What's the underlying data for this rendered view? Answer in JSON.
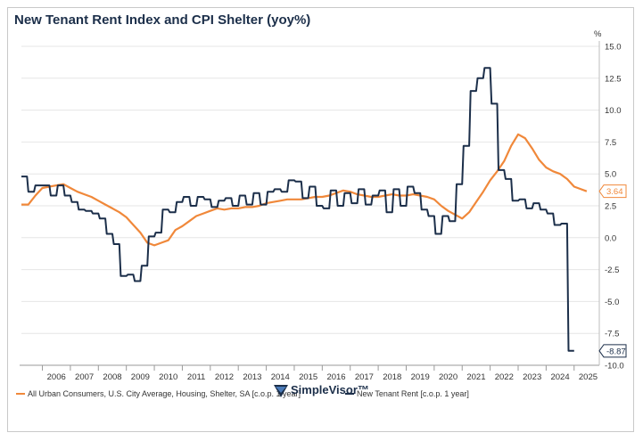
{
  "chart_data": {
    "type": "line",
    "title": "New Tenant Rent Index and CPI Shelter (yoy%)",
    "y_unit": "%",
    "ylim": [
      -10,
      15
    ],
    "y_ticks": [
      "15.0",
      "12.5",
      "10.0",
      "7.5",
      "5.0",
      "2.5",
      "0.0",
      "-2.5",
      "-5.0",
      "-7.5",
      "-10.0"
    ],
    "x_ticks": [
      "2006",
      "2007",
      "2008",
      "2009",
      "2010",
      "2011",
      "2012",
      "2013",
      "2014",
      "2015",
      "2016",
      "2017",
      "2018",
      "2019",
      "2020",
      "2021",
      "2022",
      "2023",
      "2024",
      "2025"
    ],
    "grid": true,
    "legend_position": "bottom-left",
    "series": [
      {
        "name": "All Urban Consumers, U.S. City Average, Housing, Shelter, SA [c.o.p. 1 year]",
        "color": "#f0883a",
        "end_label": "3.64",
        "points": [
          [
            2005.25,
            2.6
          ],
          [
            2005.5,
            2.6
          ],
          [
            2005.75,
            3.3
          ],
          [
            2006.0,
            3.9
          ],
          [
            2006.25,
            4.0
          ],
          [
            2006.5,
            4.1
          ],
          [
            2006.75,
            4.2
          ],
          [
            2007.0,
            3.9
          ],
          [
            2007.25,
            3.6
          ],
          [
            2007.5,
            3.4
          ],
          [
            2007.75,
            3.2
          ],
          [
            2008.0,
            2.9
          ],
          [
            2008.25,
            2.6
          ],
          [
            2008.5,
            2.3
          ],
          [
            2008.75,
            2.0
          ],
          [
            2009.0,
            1.6
          ],
          [
            2009.25,
            1.0
          ],
          [
            2009.5,
            0.4
          ],
          [
            2009.75,
            -0.4
          ],
          [
            2010.0,
            -0.6
          ],
          [
            2010.25,
            -0.4
          ],
          [
            2010.5,
            -0.2
          ],
          [
            2010.75,
            0.6
          ],
          [
            2011.0,
            0.9
          ],
          [
            2011.25,
            1.3
          ],
          [
            2011.5,
            1.7
          ],
          [
            2011.75,
            1.9
          ],
          [
            2012.0,
            2.1
          ],
          [
            2012.25,
            2.3
          ],
          [
            2012.5,
            2.2
          ],
          [
            2012.75,
            2.3
          ],
          [
            2013.0,
            2.3
          ],
          [
            2013.25,
            2.4
          ],
          [
            2013.5,
            2.4
          ],
          [
            2013.75,
            2.5
          ],
          [
            2014.0,
            2.7
          ],
          [
            2014.25,
            2.8
          ],
          [
            2014.5,
            2.9
          ],
          [
            2014.75,
            3.0
          ],
          [
            2015.0,
            3.0
          ],
          [
            2015.25,
            3.0
          ],
          [
            2015.5,
            3.1
          ],
          [
            2015.75,
            3.2
          ],
          [
            2016.0,
            3.2
          ],
          [
            2016.25,
            3.3
          ],
          [
            2016.5,
            3.5
          ],
          [
            2016.75,
            3.7
          ],
          [
            2017.0,
            3.6
          ],
          [
            2017.25,
            3.4
          ],
          [
            2017.5,
            3.3
          ],
          [
            2017.75,
            3.2
          ],
          [
            2018.0,
            3.2
          ],
          [
            2018.25,
            3.3
          ],
          [
            2018.5,
            3.4
          ],
          [
            2018.75,
            3.3
          ],
          [
            2019.0,
            3.3
          ],
          [
            2019.25,
            3.4
          ],
          [
            2019.5,
            3.3
          ],
          [
            2019.75,
            3.2
          ],
          [
            2020.0,
            3.0
          ],
          [
            2020.25,
            2.5
          ],
          [
            2020.5,
            2.1
          ],
          [
            2020.75,
            1.8
          ],
          [
            2021.0,
            1.5
          ],
          [
            2021.25,
            2.0
          ],
          [
            2021.5,
            2.8
          ],
          [
            2021.75,
            3.6
          ],
          [
            2022.0,
            4.5
          ],
          [
            2022.25,
            5.2
          ],
          [
            2022.5,
            6.0
          ],
          [
            2022.75,
            7.2
          ],
          [
            2023.0,
            8.1
          ],
          [
            2023.25,
            7.8
          ],
          [
            2023.5,
            7.0
          ],
          [
            2023.75,
            6.1
          ],
          [
            2024.0,
            5.5
          ],
          [
            2024.25,
            5.2
          ],
          [
            2024.5,
            5.0
          ],
          [
            2024.75,
            4.6
          ],
          [
            2025.0,
            4.0
          ],
          [
            2025.25,
            3.8
          ],
          [
            2025.45,
            3.64
          ]
        ]
      },
      {
        "name": "New Tenant Rent [c.o.p. 1 year]",
        "color": "#1c2f4a",
        "end_label": "-8.87",
        "points": [
          [
            2005.25,
            4.8
          ],
          [
            2005.45,
            4.8
          ],
          [
            2005.5,
            3.6
          ],
          [
            2005.7,
            3.6
          ],
          [
            2005.75,
            4.1
          ],
          [
            2006.0,
            4.1
          ],
          [
            2006.05,
            4.1
          ],
          [
            2006.25,
            4.1
          ],
          [
            2006.3,
            3.3
          ],
          [
            2006.5,
            3.3
          ],
          [
            2006.55,
            4.1
          ],
          [
            2006.75,
            4.1
          ],
          [
            2006.8,
            3.3
          ],
          [
            2007.0,
            3.3
          ],
          [
            2007.05,
            2.8
          ],
          [
            2007.25,
            2.8
          ],
          [
            2007.3,
            2.2
          ],
          [
            2007.5,
            2.2
          ],
          [
            2007.55,
            2.1
          ],
          [
            2007.75,
            2.1
          ],
          [
            2007.8,
            1.9
          ],
          [
            2008.0,
            1.9
          ],
          [
            2008.05,
            1.5
          ],
          [
            2008.25,
            1.5
          ],
          [
            2008.3,
            0.3
          ],
          [
            2008.5,
            0.3
          ],
          [
            2008.55,
            -0.5
          ],
          [
            2008.75,
            -0.5
          ],
          [
            2008.8,
            -3.0
          ],
          [
            2009.0,
            -3.0
          ],
          [
            2009.05,
            -2.9
          ],
          [
            2009.25,
            -2.9
          ],
          [
            2009.3,
            -3.4
          ],
          [
            2009.5,
            -3.4
          ],
          [
            2009.55,
            -2.2
          ],
          [
            2009.75,
            -2.2
          ],
          [
            2009.8,
            0.1
          ],
          [
            2010.0,
            0.1
          ],
          [
            2010.05,
            0.4
          ],
          [
            2010.25,
            0.4
          ],
          [
            2010.3,
            2.2
          ],
          [
            2010.5,
            2.2
          ],
          [
            2010.55,
            2.0
          ],
          [
            2010.75,
            2.0
          ],
          [
            2010.8,
            2.8
          ],
          [
            2011.0,
            2.8
          ],
          [
            2011.05,
            3.2
          ],
          [
            2011.25,
            3.2
          ],
          [
            2011.3,
            2.5
          ],
          [
            2011.5,
            2.5
          ],
          [
            2011.55,
            3.2
          ],
          [
            2011.75,
            3.2
          ],
          [
            2011.8,
            3.0
          ],
          [
            2012.0,
            3.0
          ],
          [
            2012.05,
            2.4
          ],
          [
            2012.25,
            2.4
          ],
          [
            2012.3,
            2.9
          ],
          [
            2012.5,
            2.9
          ],
          [
            2012.55,
            3.1
          ],
          [
            2012.75,
            3.1
          ],
          [
            2012.8,
            2.5
          ],
          [
            2013.0,
            2.5
          ],
          [
            2013.05,
            3.3
          ],
          [
            2013.25,
            3.3
          ],
          [
            2013.3,
            2.6
          ],
          [
            2013.5,
            2.6
          ],
          [
            2013.55,
            3.5
          ],
          [
            2013.75,
            3.5
          ],
          [
            2013.8,
            2.6
          ],
          [
            2014.0,
            2.6
          ],
          [
            2014.05,
            3.6
          ],
          [
            2014.25,
            3.6
          ],
          [
            2014.3,
            3.8
          ],
          [
            2014.5,
            3.8
          ],
          [
            2014.55,
            3.6
          ],
          [
            2014.75,
            3.6
          ],
          [
            2014.8,
            4.5
          ],
          [
            2015.0,
            4.5
          ],
          [
            2015.05,
            4.4
          ],
          [
            2015.25,
            4.4
          ],
          [
            2015.3,
            3.1
          ],
          [
            2015.5,
            3.1
          ],
          [
            2015.55,
            4.0
          ],
          [
            2015.75,
            4.0
          ],
          [
            2015.8,
            2.5
          ],
          [
            2016.0,
            2.5
          ],
          [
            2016.05,
            2.3
          ],
          [
            2016.25,
            2.3
          ],
          [
            2016.3,
            3.7
          ],
          [
            2016.5,
            3.7
          ],
          [
            2016.55,
            2.5
          ],
          [
            2016.75,
            2.5
          ],
          [
            2016.8,
            3.5
          ],
          [
            2017.0,
            3.5
          ],
          [
            2017.05,
            2.7
          ],
          [
            2017.25,
            2.7
          ],
          [
            2017.3,
            3.8
          ],
          [
            2017.5,
            3.8
          ],
          [
            2017.55,
            2.6
          ],
          [
            2017.75,
            2.6
          ],
          [
            2017.8,
            3.3
          ],
          [
            2018.0,
            3.3
          ],
          [
            2018.05,
            3.7
          ],
          [
            2018.25,
            3.7
          ],
          [
            2018.3,
            2.0
          ],
          [
            2018.5,
            2.0
          ],
          [
            2018.55,
            3.8
          ],
          [
            2018.75,
            3.8
          ],
          [
            2018.8,
            2.5
          ],
          [
            2019.0,
            2.5
          ],
          [
            2019.05,
            4.0
          ],
          [
            2019.25,
            4.0
          ],
          [
            2019.3,
            3.5
          ],
          [
            2019.5,
            3.5
          ],
          [
            2019.55,
            2.2
          ],
          [
            2019.75,
            2.2
          ],
          [
            2019.8,
            1.7
          ],
          [
            2020.0,
            1.7
          ],
          [
            2020.05,
            0.3
          ],
          [
            2020.25,
            0.3
          ],
          [
            2020.3,
            1.7
          ],
          [
            2020.5,
            1.7
          ],
          [
            2020.55,
            1.3
          ],
          [
            2020.75,
            1.3
          ],
          [
            2020.8,
            4.2
          ],
          [
            2021.0,
            4.2
          ],
          [
            2021.05,
            7.2
          ],
          [
            2021.25,
            7.2
          ],
          [
            2021.3,
            11.5
          ],
          [
            2021.5,
            11.5
          ],
          [
            2021.55,
            12.5
          ],
          [
            2021.75,
            12.5
          ],
          [
            2021.8,
            13.3
          ],
          [
            2022.0,
            13.3
          ],
          [
            2022.05,
            10.5
          ],
          [
            2022.25,
            10.5
          ],
          [
            2022.3,
            5.3
          ],
          [
            2022.5,
            5.3
          ],
          [
            2022.55,
            4.6
          ],
          [
            2022.75,
            4.6
          ],
          [
            2022.8,
            2.9
          ],
          [
            2023.0,
            2.9
          ],
          [
            2023.05,
            3.0
          ],
          [
            2023.25,
            3.0
          ],
          [
            2023.3,
            2.3
          ],
          [
            2023.5,
            2.3
          ],
          [
            2023.55,
            2.7
          ],
          [
            2023.75,
            2.7
          ],
          [
            2023.8,
            2.2
          ],
          [
            2024.0,
            2.2
          ],
          [
            2024.05,
            1.9
          ],
          [
            2024.25,
            1.9
          ],
          [
            2024.3,
            1.0
          ],
          [
            2024.5,
            1.0
          ],
          [
            2024.55,
            1.1
          ],
          [
            2024.75,
            1.1
          ],
          [
            2024.8,
            -8.87
          ],
          [
            2025.0,
            -8.87
          ]
        ]
      }
    ]
  },
  "brand": {
    "name": "SimpleVisor",
    "mark": "™"
  }
}
